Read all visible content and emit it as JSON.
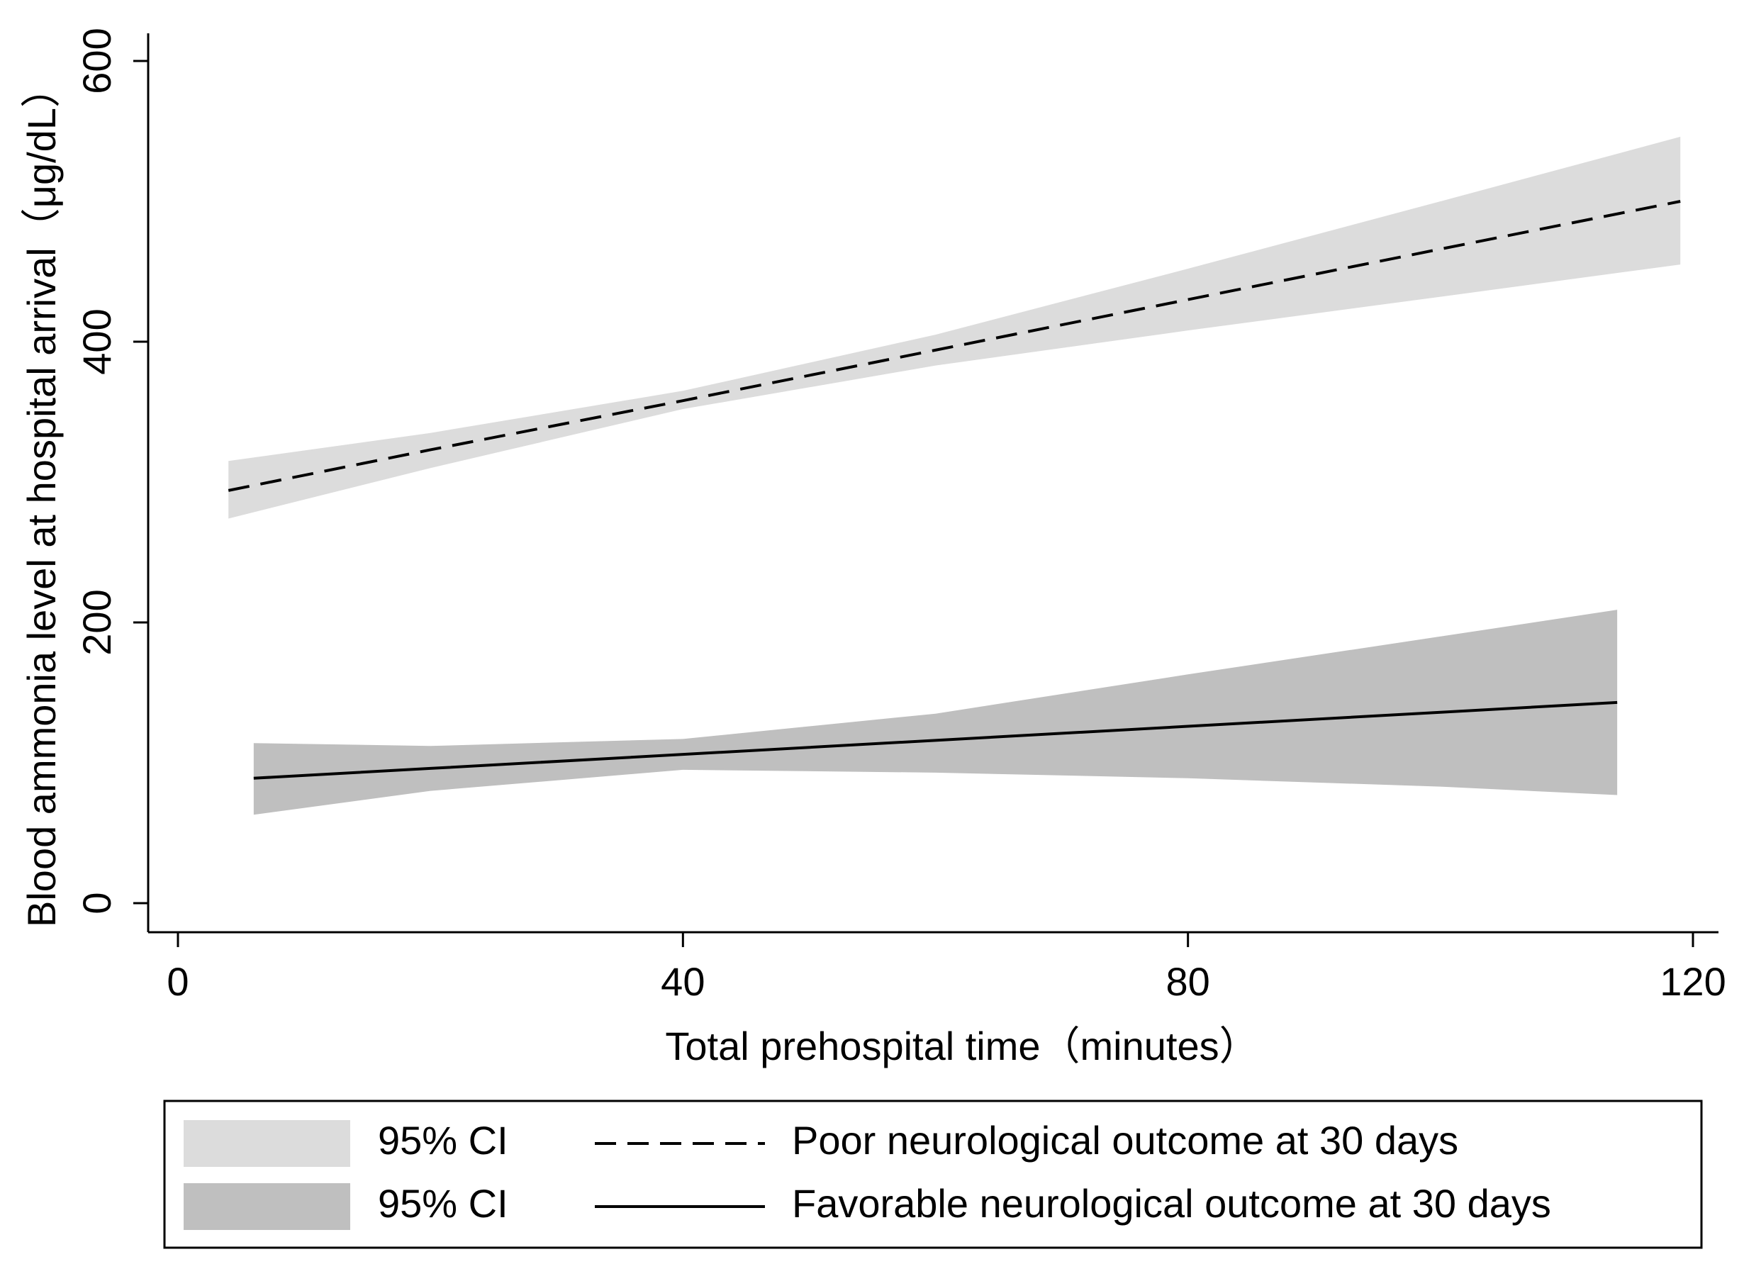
{
  "chart_data": {
    "type": "line",
    "xlabel": "Total prehospital time（minutes）",
    "ylabel": "Blood ammonia level at hospital arrival（μg/dL）",
    "xlim": [
      0,
      120
    ],
    "xticks": [
      0,
      40,
      80,
      120
    ],
    "ylim": [
      0,
      600
    ],
    "yticks": [
      0,
      200,
      400,
      600
    ],
    "grid": false,
    "legend": "bottom",
    "series": [
      {
        "name": "Poor neurological outcome at 30 days",
        "color": "#000000",
        "dash": true,
        "x": [
          4,
          20,
          40,
          60,
          80,
          100,
          119
        ],
        "values": [
          294,
          323,
          358,
          394,
          430,
          466,
          500
        ],
        "ci_name": "95% CI",
        "ci_color": "#dcdcdc",
        "ci_upper": [
          315,
          335,
          365,
          405,
          452,
          500,
          546
        ],
        "ci_lower": [
          274,
          310,
          352,
          383,
          408,
          432,
          455
        ]
      },
      {
        "name": "Favorable neurological outcome at 30 days",
        "color": "#000000",
        "dash": false,
        "x": [
          6,
          20,
          40,
          60,
          80,
          100,
          114
        ],
        "values": [
          89,
          96,
          106,
          116,
          126,
          136,
          143
        ],
        "ci_name": "95% CI",
        "ci_color": "#bfbfbf",
        "ci_upper": [
          114,
          112,
          117,
          135,
          163,
          190,
          209
        ],
        "ci_lower": [
          63,
          80,
          95,
          93,
          89,
          83,
          77
        ]
      }
    ]
  }
}
